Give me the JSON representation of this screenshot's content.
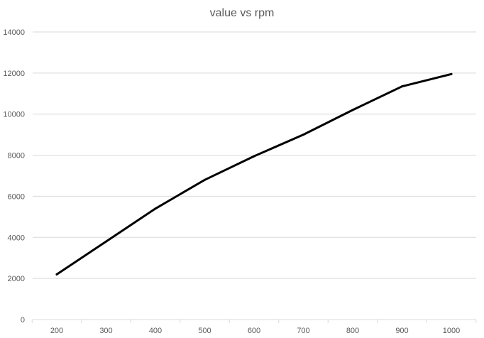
{
  "chart_data": {
    "type": "line",
    "title": "value vs rpm",
    "xlabel": "",
    "ylabel": "",
    "x": [
      200,
      300,
      400,
      500,
      600,
      700,
      800,
      900,
      1000
    ],
    "series": [
      {
        "values": [
          2200,
          3800,
          5400,
          6800,
          7950,
          9000,
          10200,
          11350,
          11950
        ]
      }
    ],
    "x_tick_labels": [
      "200",
      "300",
      "400",
      "500",
      "600",
      "700",
      "800",
      "900",
      "1000"
    ],
    "y_tick_labels": [
      "0",
      "2000",
      "4000",
      "6000",
      "8000",
      "10000",
      "12000",
      "14000"
    ],
    "y_ticks": [
      0,
      2000,
      4000,
      6000,
      8000,
      10000,
      12000,
      14000
    ],
    "ylim": [
      0,
      14000
    ],
    "grid": true,
    "legend": "none",
    "colors": {
      "series": "#000000",
      "grid": "#d9d9d9",
      "text": "#595959"
    }
  }
}
